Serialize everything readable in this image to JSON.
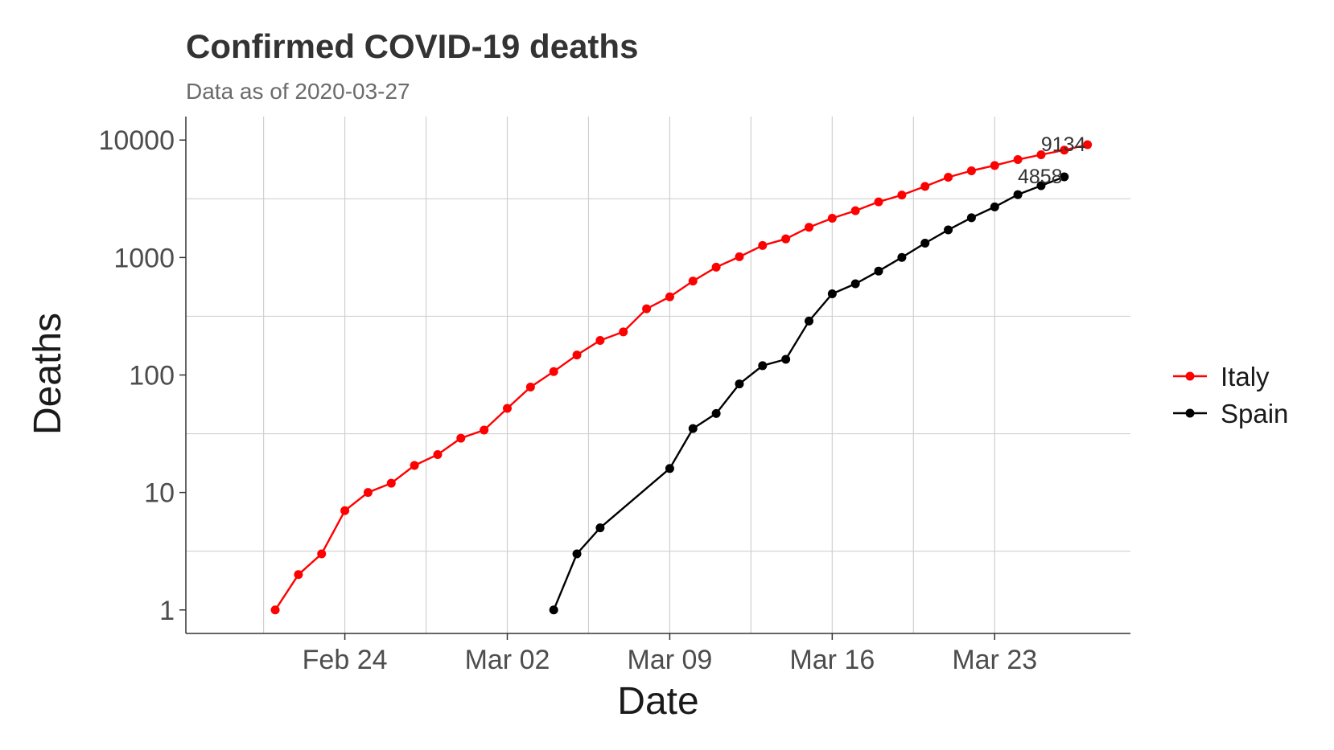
{
  "chart_data": {
    "type": "line",
    "title": "Confirmed COVID-19 deaths",
    "subtitle": "Data as of 2020-03-27",
    "xlabel": "Date",
    "ylabel": "Deaths",
    "y_scale": "log10",
    "ylim": [
      1,
      10000
    ],
    "xlim": [
      "2020-02-19",
      "2020-03-27"
    ],
    "x_ticks": [
      {
        "date": "2020-02-24",
        "label": "Feb 24"
      },
      {
        "date": "2020-03-02",
        "label": "Mar 02"
      },
      {
        "date": "2020-03-09",
        "label": "Mar 09"
      },
      {
        "date": "2020-03-16",
        "label": "Mar 16"
      },
      {
        "date": "2020-03-23",
        "label": "Mar 23"
      }
    ],
    "y_ticks": [
      {
        "value": 1,
        "label": "1"
      },
      {
        "value": 10,
        "label": "10"
      },
      {
        "value": 100,
        "label": "100"
      },
      {
        "value": 1000,
        "label": "1000"
      },
      {
        "value": 10000,
        "label": "10000"
      }
    ],
    "grid": true,
    "legend_position": "right",
    "series": [
      {
        "name": "Italy",
        "color": "#ff0000",
        "end_label": "9134",
        "points": [
          [
            "2020-02-21",
            1
          ],
          [
            "2020-02-22",
            2
          ],
          [
            "2020-02-23",
            3
          ],
          [
            "2020-02-24",
            7
          ],
          [
            "2020-02-25",
            10
          ],
          [
            "2020-02-26",
            12
          ],
          [
            "2020-02-27",
            17
          ],
          [
            "2020-02-28",
            21
          ],
          [
            "2020-02-29",
            29
          ],
          [
            "2020-03-01",
            34
          ],
          [
            "2020-03-02",
            52
          ],
          [
            "2020-03-03",
            79
          ],
          [
            "2020-03-04",
            107
          ],
          [
            "2020-03-05",
            148
          ],
          [
            "2020-03-06",
            197
          ],
          [
            "2020-03-07",
            233
          ],
          [
            "2020-03-08",
            366
          ],
          [
            "2020-03-09",
            463
          ],
          [
            "2020-03-10",
            631
          ],
          [
            "2020-03-11",
            827
          ],
          [
            "2020-03-12",
            1016
          ],
          [
            "2020-03-13",
            1266
          ],
          [
            "2020-03-14",
            1441
          ],
          [
            "2020-03-15",
            1809
          ],
          [
            "2020-03-16",
            2158
          ],
          [
            "2020-03-17",
            2503
          ],
          [
            "2020-03-18",
            2978
          ],
          [
            "2020-03-19",
            3405
          ],
          [
            "2020-03-20",
            4032
          ],
          [
            "2020-03-21",
            4825
          ],
          [
            "2020-03-22",
            5476
          ],
          [
            "2020-03-23",
            6077
          ],
          [
            "2020-03-24",
            6820
          ],
          [
            "2020-03-25",
            7503
          ],
          [
            "2020-03-26",
            8215
          ],
          [
            "2020-03-27",
            9134
          ]
        ]
      },
      {
        "name": "Spain",
        "color": "#000000",
        "end_label": "4858",
        "points": [
          [
            "2020-03-04",
            1
          ],
          [
            "2020-03-05",
            3
          ],
          [
            "2020-03-06",
            5
          ],
          [
            "2020-03-09",
            16
          ],
          [
            "2020-03-10",
            35
          ],
          [
            "2020-03-11",
            47
          ],
          [
            "2020-03-12",
            84
          ],
          [
            "2020-03-13",
            120
          ],
          [
            "2020-03-14",
            136
          ],
          [
            "2020-03-15",
            288
          ],
          [
            "2020-03-16",
            491
          ],
          [
            "2020-03-17",
            598
          ],
          [
            "2020-03-18",
            767
          ],
          [
            "2020-03-19",
            1002
          ],
          [
            "2020-03-20",
            1326
          ],
          [
            "2020-03-21",
            1720
          ],
          [
            "2020-03-22",
            2182
          ],
          [
            "2020-03-23",
            2696
          ],
          [
            "2020-03-24",
            3434
          ],
          [
            "2020-03-25",
            4089
          ],
          [
            "2020-03-26",
            4858
          ]
        ]
      }
    ]
  }
}
